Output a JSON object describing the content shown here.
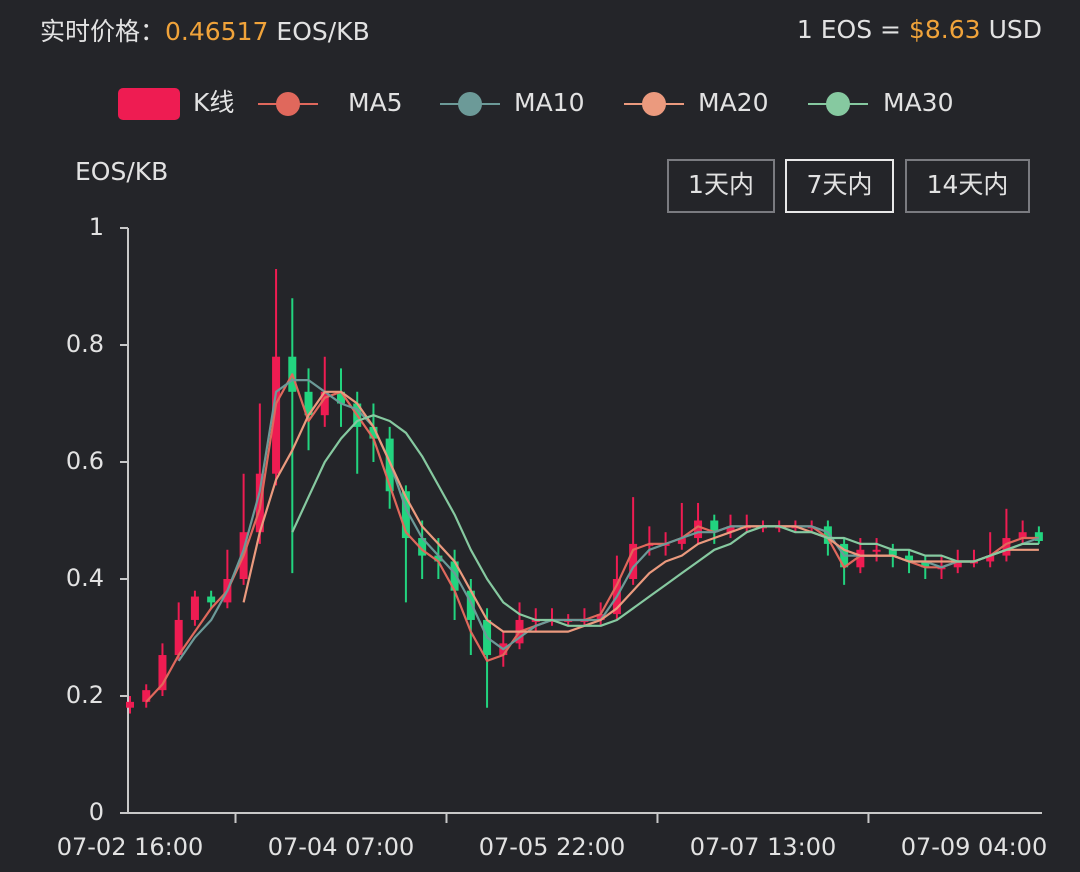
{
  "header": {
    "price_label": "实时价格：",
    "price": 0.46517,
    "price_unit": "EOS/KB",
    "rate_prefix": "1 EOS =",
    "rate": "$8.63",
    "rate_unit": "USD"
  },
  "range_buttons": {
    "items": [
      "1天内",
      "7天内",
      "14天内"
    ],
    "selected": 1
  },
  "chart_data": {
    "type": "candlestick",
    "y_label": "EOS/KB",
    "ylim": [
      0,
      1
    ],
    "yticks": [
      0,
      0.2,
      0.4,
      0.6,
      0.8,
      1
    ],
    "categories": [
      "07-02 16:00",
      null,
      null,
      null,
      null,
      null,
      null,
      null,
      null,
      null,
      null,
      null,
      null,
      "07-04 07:00",
      null,
      null,
      null,
      null,
      null,
      null,
      null,
      null,
      null,
      null,
      null,
      null,
      "07-05 22:00",
      null,
      null,
      null,
      null,
      null,
      null,
      null,
      null,
      null,
      null,
      null,
      null,
      "07-07 13:00",
      null,
      null,
      null,
      null,
      null,
      null,
      null,
      null,
      null,
      null,
      null,
      null,
      "07-09 04:00",
      null,
      null,
      null,
      null
    ],
    "candles": {
      "name": "K线",
      "color_up": "#ee1c52",
      "color_down": "#22d47f",
      "open": [
        0.18,
        0.19,
        0.21,
        0.27,
        0.33,
        0.37,
        0.36,
        0.4,
        0.48,
        0.58,
        0.78,
        0.72,
        0.68,
        0.72,
        0.7,
        0.66,
        0.64,
        0.55,
        0.47,
        0.44,
        0.43,
        0.38,
        0.33,
        0.27,
        0.29,
        0.33,
        0.33,
        0.33,
        0.33,
        0.33,
        0.34,
        0.4,
        0.46,
        0.46,
        0.46,
        0.47,
        0.5,
        0.48,
        0.49,
        0.49,
        0.49,
        0.49,
        0.49,
        0.49,
        0.46,
        0.42,
        0.45,
        0.45,
        0.44,
        0.43,
        0.42,
        0.42,
        0.43,
        0.43,
        0.44,
        0.47,
        0.48
      ],
      "high": [
        0.2,
        0.22,
        0.29,
        0.36,
        0.38,
        0.38,
        0.45,
        0.58,
        0.7,
        0.93,
        0.88,
        0.76,
        0.78,
        0.76,
        0.72,
        0.7,
        0.66,
        0.56,
        0.5,
        0.47,
        0.45,
        0.4,
        0.35,
        0.31,
        0.36,
        0.35,
        0.35,
        0.34,
        0.35,
        0.36,
        0.44,
        0.54,
        0.49,
        0.48,
        0.53,
        0.53,
        0.51,
        0.51,
        0.51,
        0.5,
        0.5,
        0.5,
        0.5,
        0.5,
        0.47,
        0.47,
        0.47,
        0.46,
        0.45,
        0.44,
        0.44,
        0.45,
        0.45,
        0.48,
        0.52,
        0.5,
        0.49
      ],
      "low": [
        0.17,
        0.18,
        0.2,
        0.26,
        0.32,
        0.35,
        0.35,
        0.39,
        0.46,
        0.56,
        0.41,
        0.62,
        0.66,
        0.66,
        0.58,
        0.6,
        0.52,
        0.36,
        0.4,
        0.4,
        0.33,
        0.27,
        0.18,
        0.25,
        0.28,
        0.31,
        0.32,
        0.32,
        0.32,
        0.32,
        0.33,
        0.39,
        0.44,
        0.44,
        0.45,
        0.46,
        0.46,
        0.47,
        0.48,
        0.48,
        0.48,
        0.48,
        0.48,
        0.44,
        0.39,
        0.41,
        0.43,
        0.42,
        0.41,
        0.4,
        0.4,
        0.41,
        0.42,
        0.42,
        0.43,
        0.46,
        0.46
      ],
      "close": [
        0.19,
        0.21,
        0.27,
        0.33,
        0.37,
        0.36,
        0.4,
        0.48,
        0.58,
        0.78,
        0.72,
        0.68,
        0.72,
        0.7,
        0.66,
        0.64,
        0.55,
        0.47,
        0.44,
        0.43,
        0.38,
        0.33,
        0.27,
        0.29,
        0.33,
        0.33,
        0.33,
        0.33,
        0.33,
        0.34,
        0.4,
        0.46,
        0.46,
        0.46,
        0.47,
        0.5,
        0.48,
        0.49,
        0.49,
        0.49,
        0.49,
        0.49,
        0.49,
        0.46,
        0.42,
        0.45,
        0.45,
        0.44,
        0.43,
        0.42,
        0.42,
        0.43,
        0.43,
        0.44,
        0.47,
        0.48,
        0.465
      ]
    },
    "series": [
      {
        "name": "MA5",
        "color": "#e0685c",
        "values": [
          null,
          0.19,
          0.22,
          0.27,
          0.31,
          0.35,
          0.38,
          0.44,
          0.52,
          0.7,
          0.75,
          0.67,
          0.71,
          0.72,
          0.68,
          0.64,
          0.56,
          0.48,
          0.45,
          0.43,
          0.38,
          0.31,
          0.26,
          0.27,
          0.31,
          0.32,
          0.33,
          0.33,
          0.33,
          0.34,
          0.39,
          0.45,
          0.46,
          0.46,
          0.47,
          0.49,
          0.48,
          0.49,
          0.49,
          0.49,
          0.49,
          0.49,
          0.49,
          0.47,
          0.42,
          0.44,
          0.44,
          0.44,
          0.43,
          0.42,
          0.42,
          0.43,
          0.43,
          0.44,
          0.46,
          0.47,
          0.47
        ]
      },
      {
        "name": "MA10",
        "color": "#6c9a98",
        "values": [
          null,
          null,
          null,
          0.26,
          0.3,
          0.33,
          0.38,
          0.45,
          0.55,
          0.72,
          0.74,
          0.74,
          0.72,
          0.7,
          0.69,
          0.66,
          0.6,
          0.52,
          0.47,
          0.44,
          0.41,
          0.36,
          0.3,
          0.28,
          0.3,
          0.32,
          0.33,
          0.33,
          0.33,
          0.33,
          0.37,
          0.42,
          0.45,
          0.46,
          0.47,
          0.48,
          0.48,
          0.49,
          0.49,
          0.49,
          0.49,
          0.49,
          0.49,
          0.48,
          0.44,
          0.44,
          0.44,
          0.44,
          0.43,
          0.43,
          0.42,
          0.43,
          0.43,
          0.44,
          0.45,
          0.46,
          0.47
        ]
      },
      {
        "name": "MA20",
        "color": "#eb9a7e",
        "values": [
          null,
          null,
          null,
          null,
          null,
          null,
          null,
          0.36,
          0.48,
          0.57,
          0.62,
          0.68,
          0.72,
          0.72,
          0.7,
          0.66,
          0.6,
          0.54,
          0.49,
          0.46,
          0.43,
          0.38,
          0.33,
          0.31,
          0.31,
          0.31,
          0.31,
          0.31,
          0.32,
          0.33,
          0.35,
          0.38,
          0.41,
          0.43,
          0.44,
          0.46,
          0.47,
          0.48,
          0.49,
          0.49,
          0.49,
          0.49,
          0.48,
          0.47,
          0.45,
          0.44,
          0.44,
          0.44,
          0.43,
          0.43,
          0.43,
          0.43,
          0.43,
          0.44,
          0.45,
          0.45,
          0.45
        ]
      },
      {
        "name": "MA30",
        "color": "#86c9a0",
        "values": [
          null,
          null,
          null,
          null,
          null,
          null,
          null,
          null,
          null,
          null,
          0.48,
          0.54,
          0.6,
          0.64,
          0.67,
          0.68,
          0.67,
          0.65,
          0.61,
          0.56,
          0.51,
          0.45,
          0.4,
          0.36,
          0.34,
          0.33,
          0.33,
          0.32,
          0.32,
          0.32,
          0.33,
          0.35,
          0.37,
          0.39,
          0.41,
          0.43,
          0.45,
          0.46,
          0.48,
          0.49,
          0.49,
          0.48,
          0.48,
          0.47,
          0.47,
          0.46,
          0.46,
          0.45,
          0.45,
          0.44,
          0.44,
          0.43,
          0.43,
          0.44,
          0.45,
          0.46,
          0.46
        ]
      }
    ]
  }
}
